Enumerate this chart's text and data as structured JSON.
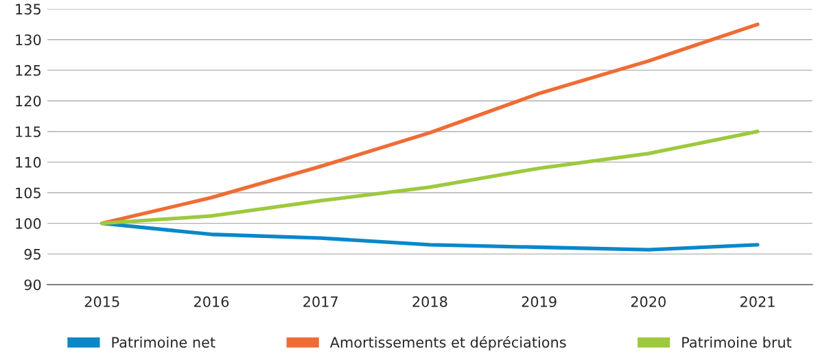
{
  "chart_data": {
    "type": "line",
    "categories": [
      "2015",
      "2016",
      "2017",
      "2018",
      "2019",
      "2020",
      "2021"
    ],
    "series": [
      {
        "name": "Patrimoine net",
        "color": "#0a87c9",
        "values": [
          100,
          98.2,
          97.6,
          96.5,
          96.1,
          95.7,
          96.5
        ]
      },
      {
        "name": "Amortissements et dépréciations",
        "color": "#ef6c35",
        "values": [
          100,
          104.2,
          109.3,
          114.8,
          121.2,
          126.5,
          132.5
        ]
      },
      {
        "name": "Patrimoine brut",
        "color": "#9dc93e",
        "values": [
          100,
          101.2,
          103.7,
          105.9,
          109,
          111.4,
          115
        ]
      }
    ],
    "ylim": [
      90,
      135
    ],
    "yticks": [
      90,
      95,
      100,
      105,
      110,
      115,
      120,
      125,
      130,
      135
    ],
    "grid": "y",
    "legend": "bottom",
    "marker": "none",
    "line_style": "solid"
  }
}
